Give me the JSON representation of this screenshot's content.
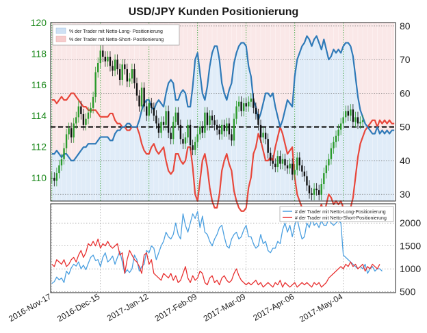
{
  "chart_data": [
    {
      "type": "line",
      "title": "USD/JPY Kunden Positionierung",
      "left_axis": {
        "ylim": [
          108.5,
          120
        ],
        "ticks": [
          110,
          112,
          114,
          116,
          118,
          120
        ],
        "color": "#1e8a1e"
      },
      "right_axis": {
        "ylim": [
          28,
          81
        ],
        "ticks": [
          30,
          40,
          50,
          60,
          70,
          80
        ]
      },
      "x_ticks": [
        "2016-Nov-17",
        "2016-Dec-15",
        "2017-Jan-12",
        "2017-Feb-09",
        "2017-Mar-09",
        "2017-Apr-06",
        "2017-May-04"
      ],
      "reference_line": 50,
      "grid": true,
      "legend_position": "top-left",
      "series": [
        {
          "name": "% der Trader mit Netto-Long- Positionierung",
          "color": "#2f7ab8",
          "fill": "#d6e6f5",
          "values": [
            42,
            42,
            43,
            42,
            41,
            42,
            42,
            41,
            40,
            40,
            41,
            42,
            43,
            44,
            44,
            45,
            45,
            45,
            45,
            46,
            47,
            47,
            47,
            47,
            46,
            46,
            48,
            49,
            49,
            50,
            50,
            51,
            51,
            50,
            50,
            50,
            52,
            55,
            57,
            58,
            58,
            56,
            55,
            57,
            58,
            57,
            56,
            60,
            63,
            64,
            63,
            58,
            58,
            60,
            61,
            60,
            56,
            56,
            62,
            70,
            72,
            66,
            60,
            58,
            62,
            68,
            72,
            74,
            74,
            70,
            63,
            60,
            58,
            61,
            63,
            69,
            72,
            74,
            75,
            75,
            74,
            68,
            65,
            58,
            56,
            52,
            54,
            57,
            60,
            60,
            59,
            60,
            56,
            53,
            50,
            52,
            55,
            58,
            57,
            56,
            65,
            70,
            72,
            74,
            75,
            77,
            76,
            74,
            76,
            77,
            75,
            73,
            76,
            73,
            70,
            71,
            73,
            72,
            73,
            72,
            74,
            75,
            75,
            74,
            71,
            65,
            59,
            55,
            53,
            51,
            50,
            49,
            48,
            48,
            50,
            48,
            49,
            48,
            49,
            48,
            49,
            49
          ]
        },
        {
          "name": "% der Trader mit Netto-Short- Positionierung",
          "color": "#e8473b",
          "fill": "#f7d9d9",
          "values": [
            58,
            58,
            57,
            58,
            59,
            58,
            58,
            59,
            60,
            60,
            59,
            58,
            57,
            56,
            56,
            55,
            55,
            55,
            55,
            54,
            53,
            53,
            53,
            53,
            54,
            54,
            52,
            51,
            51,
            50,
            50,
            49,
            49,
            50,
            50,
            50,
            48,
            45,
            43,
            42,
            42,
            44,
            45,
            43,
            42,
            43,
            44,
            40,
            37,
            36,
            37,
            42,
            42,
            40,
            39,
            40,
            44,
            44,
            38,
            30,
            28,
            34,
            40,
            42,
            38,
            32,
            28,
            26,
            26,
            30,
            37,
            40,
            42,
            39,
            37,
            31,
            28,
            26,
            25,
            25,
            26,
            32,
            35,
            42,
            44,
            48,
            46,
            43,
            40,
            40,
            41,
            40,
            44,
            47,
            50,
            48,
            45,
            42,
            43,
            44,
            35,
            30,
            28,
            26,
            25,
            23,
            24,
            26,
            24,
            23,
            25,
            27,
            24,
            27,
            30,
            29,
            27,
            28,
            27,
            28,
            26,
            25,
            25,
            26,
            29,
            35,
            41,
            45,
            47,
            49,
            50,
            51,
            52,
            52,
            50,
            52,
            51,
            52,
            51,
            52,
            51,
            51
          ]
        },
        {
          "name": "USD/JPY",
          "type": "candlestick",
          "color_up": "#2a9a2a",
          "color_down": "#111111",
          "values": [
            110.0,
            109.8,
            110.3,
            110.8,
            111.2,
            111.9,
            112.8,
            113.2,
            112.6,
            113.5,
            113.9,
            114.6,
            114.1,
            113.4,
            113.8,
            114.2,
            114.5,
            115.2,
            116.8,
            117.4,
            118.2,
            117.8,
            117.5,
            117.8,
            117.2,
            116.9,
            117.6,
            117.0,
            116.3,
            117.3,
            117.0,
            116.2,
            116.4,
            117.0,
            116.1,
            115.3,
            114.6,
            115.8,
            114.6,
            114.0,
            114.8,
            114.5,
            114.0,
            113.5,
            112.9,
            113.6,
            113.4,
            114.3,
            112.9,
            112.5,
            113.6,
            114.2,
            113.4,
            112.5,
            112.2,
            112.6,
            113.4,
            112.1,
            111.8,
            112.3,
            112.8,
            113.3,
            112.9,
            114.2,
            113.4,
            114.0,
            113.7,
            113.4,
            113.1,
            112.8,
            113.4,
            113.0,
            113.5,
            112.8,
            112.4,
            113.8,
            114.6,
            114.9,
            114.3,
            114.8,
            114.6,
            114.9,
            115.1,
            114.5,
            114.1,
            113.4,
            112.6,
            112.9,
            112.5,
            111.6,
            111.1,
            110.9,
            110.7,
            111.4,
            110.9,
            111.2,
            110.8,
            110.6,
            110.9,
            110.2,
            110.5,
            111.3,
            110.8,
            110.4,
            110.1,
            109.5,
            109.0,
            108.9,
            109.3,
            109.2,
            108.9,
            109.6,
            110.3,
            110.8,
            111.2,
            111.9,
            112.3,
            112.7,
            113.1,
            113.5,
            113.9,
            114.3,
            114.0,
            114.4,
            113.6,
            113.9,
            113.5,
            113.6,
            113.7
          ]
        }
      ]
    },
    {
      "type": "line",
      "ylim": [
        480,
        2420
      ],
      "right_ticks": [
        500,
        1000,
        1500,
        2000
      ],
      "legend_position": "top-right",
      "series": [
        {
          "name": "# der Trader mit Netto-Long-Positionierung",
          "color": "#4a9fe0",
          "values": [
            680,
            720,
            820,
            760,
            800,
            700,
            950,
            880,
            1020,
            1100,
            1060,
            1150,
            1000,
            1080,
            980,
            1120,
            1250,
            1300,
            1180,
            1200,
            1050,
            1250,
            1350,
            1150,
            1200,
            1280,
            1100,
            1250,
            1380,
            1150,
            900,
            980,
            920,
            1000,
            1300,
            1200,
            950,
            1050,
            1100,
            1400,
            1350,
            1500,
            1450,
            1200,
            1350,
            1500,
            1600,
            1800,
            1700,
            1650,
            1750,
            2000,
            1750,
            1650,
            2200,
            1950,
            1800,
            2000,
            2200,
            2100,
            2250,
            1900,
            2150,
            1800,
            1750,
            1600,
            1500,
            1650,
            1750,
            1900,
            1950,
            1700,
            1500,
            1450,
            1650,
            1750,
            1800,
            1650,
            1700,
            1850,
            1950,
            1700,
            1700,
            1550,
            1450,
            1500,
            1750,
            1550,
            1600,
            1400,
            1350,
            1450,
            1450,
            1600,
            1550,
            1850,
            2000,
            1800,
            1950,
            1700,
            1950,
            2100,
            1850,
            1650,
            1700,
            2000,
            1900,
            2100,
            1950,
            2000,
            1900,
            2050,
            1950,
            1950,
            2100,
            2000,
            1950,
            2000,
            2050,
            2000,
            1300,
            1250,
            1200,
            1150,
            1100,
            1050,
            1000,
            1050,
            1000,
            1100,
            900,
            1000,
            1050,
            950,
            1000,
            1000,
            950
          ]
        },
        {
          "name": "# der Trader mit Netto-Short-Positionierung",
          "color": "#e83030",
          "values": [
            1100,
            1050,
            1200,
            1150,
            1100,
            1200,
            1050,
            1100,
            1200,
            1250,
            1150,
            1300,
            1400,
            1250,
            1350,
            1550,
            1500,
            1600,
            1500,
            1650,
            1450,
            1550,
            1500,
            1600,
            1500,
            1450,
            1500,
            1550,
            1300,
            1350,
            900,
            1200,
            1400,
            1300,
            1200,
            1150,
            1050,
            900,
            1300,
            1350,
            1100,
            1200,
            900,
            850,
            800,
            750,
            900,
            850,
            800,
            900,
            750,
            850,
            700,
            750,
            900,
            1050,
            800,
            700,
            850,
            750,
            800,
            950,
            900,
            700,
            650,
            800,
            850,
            700,
            750,
            650,
            800,
            850,
            750,
            700,
            750,
            900,
            1000,
            850,
            750,
            700,
            650,
            700,
            650,
            700,
            750,
            650,
            700,
            600,
            650,
            700,
            650,
            600,
            700,
            650,
            750,
            600,
            700,
            650,
            600,
            650,
            700,
            600,
            650,
            700,
            650,
            700,
            650,
            600,
            700,
            650,
            700,
            600,
            650,
            700,
            800,
            850,
            900,
            950,
            1000,
            1050,
            1000,
            1100,
            1050,
            1150,
            1050,
            1100,
            1000,
            1050,
            1100,
            950,
            1050,
            1000,
            1100,
            1050,
            1000,
            1100
          ]
        }
      ]
    }
  ]
}
